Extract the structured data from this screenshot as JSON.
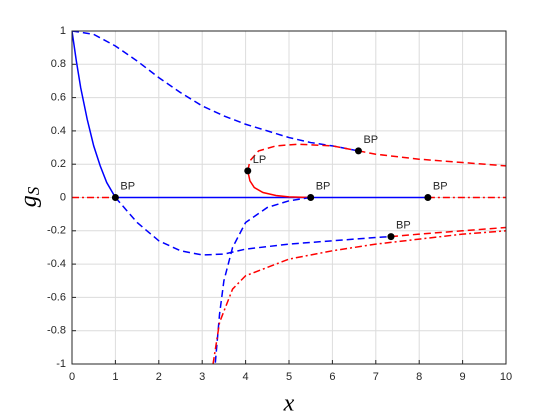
{
  "chart_data": {
    "type": "line",
    "xlabel": "x",
    "ylabel": "g",
    "ylabel_sub": "S",
    "xlim": [
      0,
      10
    ],
    "ylim": [
      -1,
      1
    ],
    "xticks": [
      0,
      1,
      2,
      3,
      4,
      5,
      6,
      7,
      8,
      9,
      10
    ],
    "yticks": [
      -1,
      -0.8,
      -0.6,
      -0.4,
      -0.2,
      0,
      0.2,
      0.4,
      0.6,
      0.8,
      1
    ],
    "grid": true,
    "series": [
      {
        "color": "#0000ff",
        "style": "solid",
        "x": [
          0,
          0.1,
          0.2,
          0.35,
          0.5,
          0.65,
          0.8,
          1
        ],
        "values": [
          1,
          0.82,
          0.66,
          0.47,
          0.31,
          0.19,
          0.09,
          0
        ]
      },
      {
        "color": "#ff0000",
        "style": "dashdot",
        "x": [
          0,
          1
        ],
        "values": [
          0,
          0
        ]
      },
      {
        "color": "#0000ff",
        "style": "solid",
        "x": [
          1,
          8.2
        ],
        "values": [
          0,
          0
        ]
      },
      {
        "color": "#ff0000",
        "style": "dashdot",
        "x": [
          8.2,
          10
        ],
        "values": [
          0,
          0
        ]
      },
      {
        "color": "#0000ff",
        "style": "dashed",
        "x": [
          0,
          0.5,
          1,
          1.5,
          2,
          2.5,
          3,
          3.5,
          4,
          4.5,
          5,
          5.5,
          6,
          6.6
        ],
        "values": [
          1,
          0.98,
          0.91,
          0.82,
          0.72,
          0.63,
          0.55,
          0.49,
          0.44,
          0.4,
          0.36,
          0.33,
          0.31,
          0.28
        ]
      },
      {
        "color": "#ff0000",
        "style": "dashed",
        "x": [
          6.6,
          7,
          8,
          9,
          10
        ],
        "values": [
          0.28,
          0.26,
          0.23,
          0.21,
          0.19
        ]
      },
      {
        "color": "#ff0000",
        "style": "solid",
        "x": [
          4.05,
          4.1,
          4.2,
          4.4,
          4.7,
          5,
          5.5
        ],
        "values": [
          0.16,
          0.1,
          0.06,
          0.03,
          0.012,
          0.004,
          0
        ]
      },
      {
        "color": "#ff0000",
        "style": "dashed",
        "x": [
          4.05,
          4.1,
          4.3,
          4.7,
          5.2,
          6,
          6.6
        ],
        "values": [
          0.16,
          0.22,
          0.28,
          0.31,
          0.32,
          0.31,
          0.28
        ]
      },
      {
        "color": "#0000ff",
        "style": "dashed",
        "x": [
          5.5,
          5,
          4.5,
          4,
          3.7,
          3.5,
          3.4,
          3.3
        ],
        "values": [
          0,
          -0.02,
          -0.06,
          -0.15,
          -0.3,
          -0.5,
          -0.7,
          -1
        ]
      },
      {
        "color": "#ff0000",
        "style": "dashdot",
        "x": [
          3.25,
          3.4,
          3.7,
          4,
          5,
          6,
          7,
          8,
          9,
          10
        ],
        "values": [
          -1,
          -0.75,
          -0.55,
          -0.47,
          -0.37,
          -0.32,
          -0.28,
          -0.25,
          -0.22,
          -0.2
        ]
      },
      {
        "color": "#0000ff",
        "style": "dashed",
        "x": [
          1,
          1.5,
          2,
          2.5,
          3,
          3.5,
          4,
          5,
          6,
          7,
          7.35
        ],
        "values": [
          0,
          -0.15,
          -0.26,
          -0.32,
          -0.345,
          -0.34,
          -0.31,
          -0.28,
          -0.26,
          -0.24,
          -0.235
        ]
      },
      {
        "color": "#ff0000",
        "style": "dashed",
        "x": [
          7.35,
          8,
          9,
          10
        ],
        "values": [
          -0.235,
          -0.22,
          -0.2,
          -0.18
        ]
      }
    ],
    "points": [
      {
        "label": "BP",
        "x": 1,
        "y": 0
      },
      {
        "label": "LP",
        "x": 4.05,
        "y": 0.16
      },
      {
        "label": "BP",
        "x": 5.5,
        "y": 0
      },
      {
        "label": "BP",
        "x": 6.6,
        "y": 0.28
      },
      {
        "label": "BP",
        "x": 8.2,
        "y": 0
      },
      {
        "label": "BP",
        "x": 7.35,
        "y": -0.235
      }
    ]
  }
}
